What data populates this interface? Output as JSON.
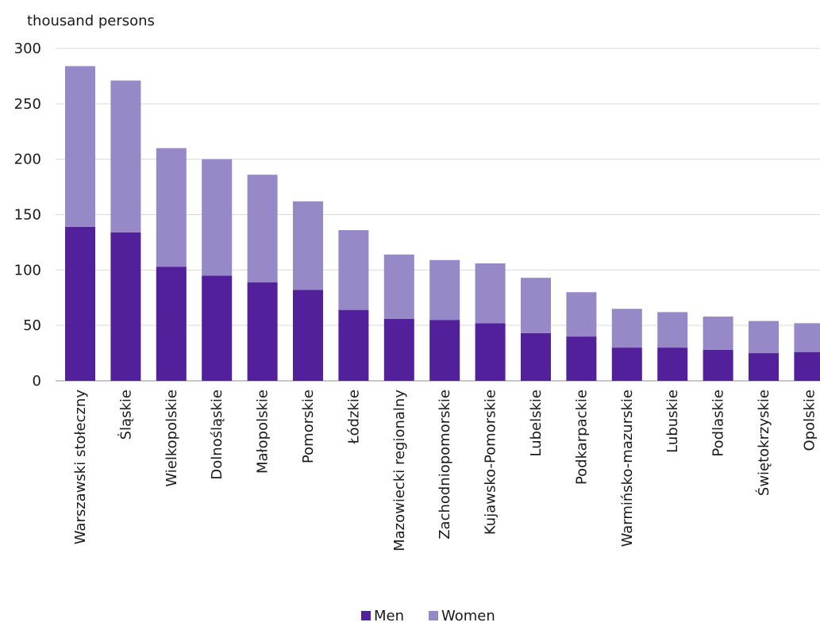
{
  "chart_data": {
    "type": "bar",
    "stacked": true,
    "ylabel": "thousand persons",
    "ylim": [
      0,
      300
    ],
    "yticks": [
      0,
      50,
      100,
      150,
      200,
      250,
      300
    ],
    "grid": true,
    "legend_position": "bottom",
    "categories": [
      "Warszawski stołeczny",
      "Śląskie",
      "Wielkopolskie",
      "Dolnośląskie",
      "Małopolskie",
      "Pomorskie",
      "Łódzkie",
      "Mazowiecki regionalny",
      "Zachodniopomorskie",
      "Kujawsko-Pomorskie",
      "Lubelskie",
      "Podkarpackie",
      "Warmińsko-mazurskie",
      "Lubuskie",
      "Podlaskie",
      "Świętokrzyskie",
      "Opolskie"
    ],
    "series": [
      {
        "name": "Men",
        "color": "#51209a",
        "values": [
          139,
          134,
          103,
          95,
          89,
          82,
          64,
          56,
          55,
          52,
          43,
          40,
          30,
          30,
          28,
          25,
          26
        ]
      },
      {
        "name": "Women",
        "color": "#9789c8",
        "values": [
          145,
          137,
          107,
          105,
          97,
          80,
          72,
          58,
          54,
          54,
          50,
          40,
          35,
          32,
          30,
          29,
          26
        ]
      }
    ]
  }
}
